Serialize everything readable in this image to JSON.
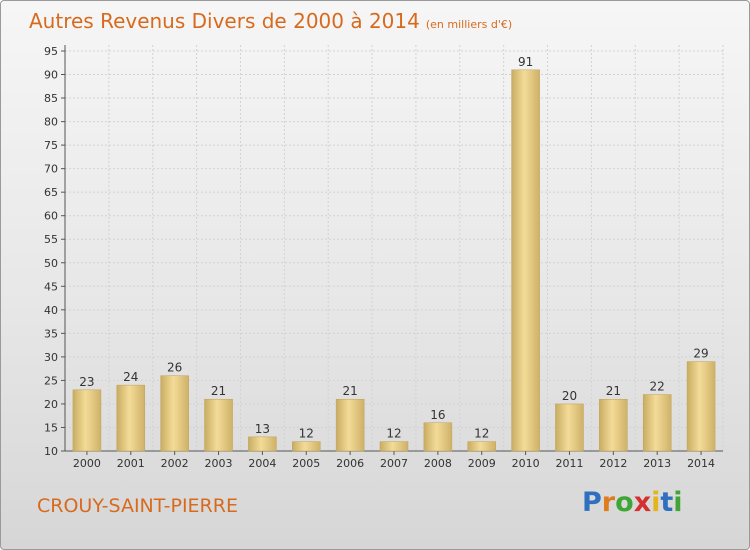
{
  "title": "Autres Revenus Divers de 2000 à 2014",
  "unit_label": "(en milliers d'€)",
  "commune": "CROUY-SAINT-PIERRE",
  "brand": {
    "text": "Proxiti",
    "letter_colors": [
      "#2f6fbf",
      "#e07b1f",
      "#3fa535",
      "#d62f2f",
      "#e3b51b",
      "#2f6fbf",
      "#3fa535"
    ]
  },
  "chart_data": {
    "type": "bar",
    "title": "Autres Revenus Divers de 2000 à 2014",
    "xlabel": "",
    "ylabel": "",
    "ylim": [
      10,
      95
    ],
    "ytick_step": 5,
    "grid": true,
    "bar_color": "#e8cd82",
    "categories": [
      "2000",
      "2001",
      "2002",
      "2003",
      "2004",
      "2005",
      "2006",
      "2007",
      "2008",
      "2009",
      "2010",
      "2011",
      "2012",
      "2013",
      "2014"
    ],
    "values": [
      23,
      24,
      26,
      21,
      13,
      12,
      21,
      12,
      16,
      12,
      91,
      20,
      21,
      22,
      29
    ]
  }
}
